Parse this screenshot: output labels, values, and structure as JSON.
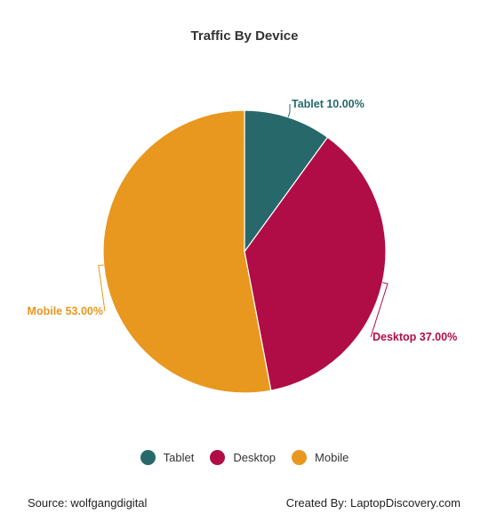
{
  "chart_data": {
    "type": "pie",
    "title": "Traffic By Device",
    "slices": [
      {
        "label": "Tablet",
        "value": 10.0,
        "display": "Tablet 10.00%",
        "color": "#27696a"
      },
      {
        "label": "Desktop",
        "value": 37.0,
        "display": "Desktop 37.00%",
        "color": "#b00c45"
      },
      {
        "label": "Mobile",
        "value": 53.0,
        "display": "Mobile 53.00%",
        "color": "#e8971f"
      }
    ],
    "unit": "%",
    "legend_position": "bottom"
  },
  "footer": {
    "source": "Source: wolfgangdigital",
    "credit": "Created By: LaptopDiscovery.com"
  }
}
